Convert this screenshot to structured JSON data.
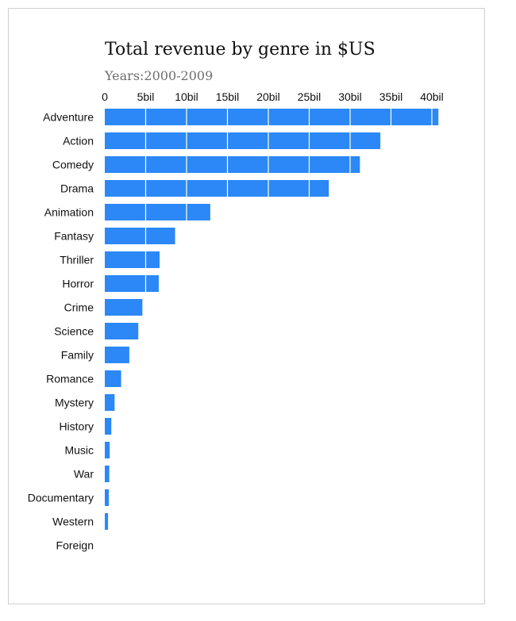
{
  "chart_data": {
    "type": "bar",
    "orientation": "horizontal",
    "title": "Total revenue by genre in $US",
    "subtitle": "Years:2000-2009",
    "xlabel": "",
    "ylabel": "",
    "xlim": [
      0,
      40.8
    ],
    "tick_values": [
      0,
      5,
      10,
      15,
      20,
      25,
      30,
      35,
      40
    ],
    "tick_labels": [
      "0",
      "5bil",
      "10bil",
      "15bil",
      "20bil",
      "25bil",
      "30bil",
      "35bil",
      "40bil"
    ],
    "tick_position": "top",
    "grid": "vertical white lines over bars",
    "bar_color": "#2b88f6",
    "categories": [
      "Adventure",
      "Action",
      "Comedy",
      "Drama",
      "Animation",
      "Fantasy",
      "Thriller",
      "Horror",
      "Crime",
      "Science",
      "Family",
      "Romance",
      "Mystery",
      "History",
      "Music",
      "War",
      "Documentary",
      "Western",
      "Foreign"
    ],
    "values": [
      40.8,
      33.7,
      31.2,
      27.4,
      12.9,
      8.6,
      6.7,
      6.6,
      4.6,
      4.1,
      3.0,
      2.0,
      1.2,
      0.8,
      0.6,
      0.55,
      0.5,
      0.4,
      0
    ]
  }
}
